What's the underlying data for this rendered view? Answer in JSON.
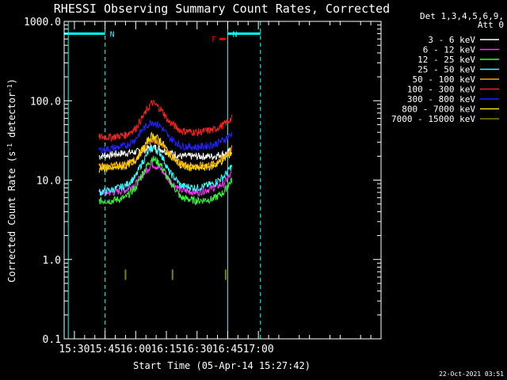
{
  "chart_data": {
    "type": "line",
    "title": "RHESSI Observing Summary Count Rates, Corrected",
    "xlabel": "Start Time (05-Apr-14 15:27:42)",
    "ylabel_main": "Corrected Count Rate (s",
    "ylabel_sup1": "-1",
    "ylabel_mid": " detector",
    "ylabel_sup2": "-1",
    "ylabel_end": ")",
    "yscale": "log",
    "ylim": [
      0.1,
      1000
    ],
    "xlim_minutes": [
      925,
      1080
    ],
    "y_ticks": [
      "0.1",
      "1.0",
      "10.0",
      "100.0",
      "1000.0"
    ],
    "x_ticks": [
      {
        "label": "15:30",
        "minute": 930
      },
      {
        "label": "15:45",
        "minute": 945
      },
      {
        "label": "16:00",
        "minute": 960
      },
      {
        "label": "16:15",
        "minute": 975
      },
      {
        "label": "16:30",
        "minute": 990
      },
      {
        "label": "16:45",
        "minute": 1005
      },
      {
        "label": "17:00",
        "minute": 1020
      }
    ],
    "legend_header": [
      "Det 1,3,4,5,6,9,",
      "Att 0"
    ],
    "legend_position": "top-right",
    "series": [
      {
        "name": "3 - 6 keV",
        "color": "#ffffff",
        "x": [
          942,
          948,
          955,
          962,
          966,
          970,
          975,
          982,
          990,
          998,
          1005,
          1007
        ],
        "y": [
          20,
          21,
          22,
          23,
          25,
          26,
          23,
          20,
          20,
          20,
          22,
          24
        ]
      },
      {
        "name": "6 - 12 keV",
        "color": "#ff33ff",
        "x": [
          942,
          948,
          955,
          960,
          964,
          968,
          972,
          976,
          982,
          990,
          998,
          1003,
          1007
        ],
        "y": [
          7,
          7,
          7.5,
          9,
          12,
          16,
          14,
          10,
          7.5,
          7,
          8,
          9,
          12
        ]
      },
      {
        "name": "12 - 25 keV",
        "color": "#33ff33",
        "x": [
          942,
          948,
          955,
          960,
          964,
          968,
          972,
          976,
          982,
          990,
          998,
          1003,
          1007
        ],
        "y": [
          5.5,
          5.5,
          6,
          8,
          13,
          19,
          16,
          10,
          6,
          5.5,
          5.8,
          7,
          10
        ]
      },
      {
        "name": "25 - 50 keV",
        "color": "#33ffff",
        "x": [
          942,
          948,
          955,
          960,
          964,
          968,
          972,
          976,
          982,
          990,
          998,
          1003,
          1007
        ],
        "y": [
          7,
          7.5,
          8.5,
          11,
          18,
          26,
          22,
          13,
          8.5,
          8,
          9,
          11,
          15
        ]
      },
      {
        "name": "50 - 100 keV",
        "color": "#ffa500",
        "x": [
          942,
          948,
          955,
          960,
          964,
          968,
          972,
          976,
          982,
          990,
          998,
          1003,
          1007
        ],
        "y": [
          15,
          15,
          16,
          18,
          25,
          33,
          30,
          22,
          16,
          15,
          16,
          19,
          25
        ]
      },
      {
        "name": "100 - 300 keV",
        "color": "#ff2020",
        "x": [
          942,
          948,
          955,
          960,
          964,
          968,
          972,
          976,
          982,
          990,
          998,
          1003,
          1007
        ],
        "y": [
          35,
          35,
          37,
          45,
          65,
          95,
          80,
          55,
          42,
          40,
          43,
          50,
          60
        ]
      },
      {
        "name": "300 - 800 keV",
        "color": "#2222ff",
        "x": [
          942,
          948,
          955,
          960,
          964,
          968,
          972,
          976,
          982,
          990,
          998,
          1003,
          1007
        ],
        "y": [
          24,
          25,
          27,
          33,
          45,
          55,
          48,
          35,
          27,
          26,
          28,
          32,
          38
        ]
      },
      {
        "name": "800 - 7000 keV",
        "color": "#ffd700",
        "x": [
          942,
          948,
          955,
          960,
          964,
          968,
          972,
          976,
          982,
          990,
          998,
          1003,
          1007
        ],
        "y": [
          14,
          14,
          15,
          18,
          26,
          37,
          32,
          22,
          15,
          14,
          15,
          18,
          22
        ]
      },
      {
        "name": "7000 - 15000 keV",
        "color": "#808000",
        "x": [
          955,
          978,
          1004
        ],
        "y": [
          0.65,
          0.65,
          0.65
        ]
      }
    ],
    "annotations": [
      {
        "label": "N",
        "color": "#00ffff",
        "x_start_minute": 925,
        "x_end_minute": 945,
        "y": 700
      },
      {
        "label": "N",
        "color": "#00ffff",
        "x_start_minute": 1005,
        "x_end_minute": 1021,
        "y": 700
      },
      {
        "label": "F",
        "color": "#ff0000",
        "x_start_minute": 1001,
        "x_end_minute": 1004,
        "y": 600
      }
    ],
    "vlines_solid_minute": [
      927,
      1005
    ],
    "vlines_dashed_minute": [
      945,
      1021
    ]
  },
  "footer_timestamp": "22-Oct-2021 03:51"
}
